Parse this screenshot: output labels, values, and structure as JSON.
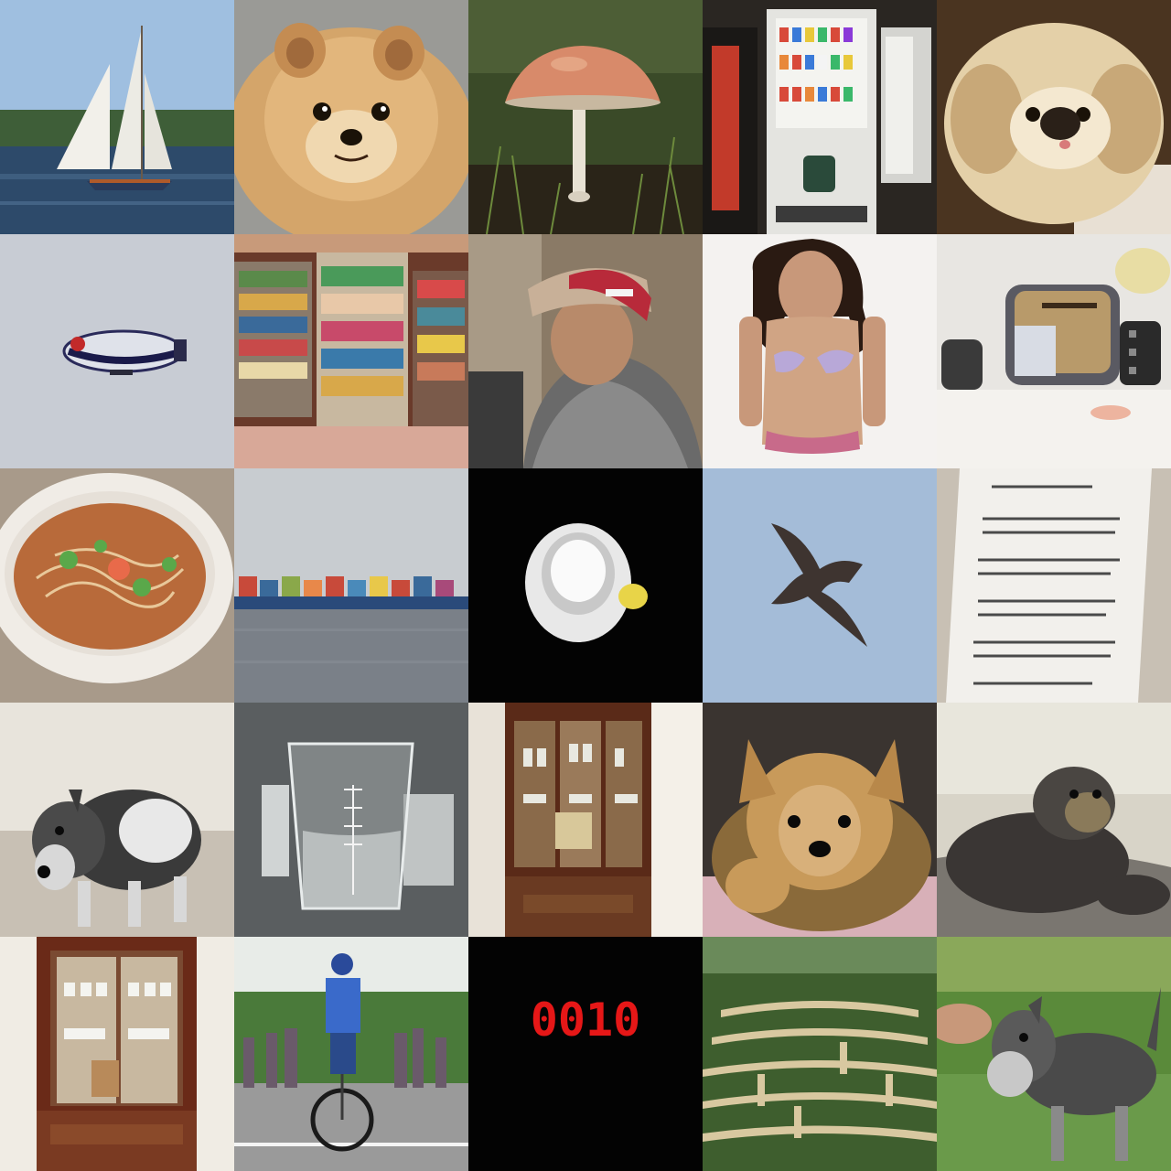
{
  "grid": {
    "rows": 5,
    "columns": 5,
    "tiles": [
      {
        "subject": "sailboat"
      },
      {
        "subject": "pomeranian"
      },
      {
        "subject": "mushroom"
      },
      {
        "subject": "vending-machine"
      },
      {
        "subject": "pekingese"
      },
      {
        "subject": "airship"
      },
      {
        "subject": "shop-shelves"
      },
      {
        "subject": "person-with-helmet"
      },
      {
        "subject": "woman-in-bikini"
      },
      {
        "subject": "toaster"
      },
      {
        "subject": "noodle-soup"
      },
      {
        "subject": "container-ship"
      },
      {
        "subject": "lamp-on-black"
      },
      {
        "subject": "bird-in-sky"
      },
      {
        "subject": "printed-document"
      },
      {
        "subject": "schnauzer"
      },
      {
        "subject": "glass-beaker"
      },
      {
        "subject": "china-cabinet"
      },
      {
        "subject": "yorkshire-terrier"
      },
      {
        "subject": "sea-lion"
      },
      {
        "subject": "china-cabinet"
      },
      {
        "subject": "unicycle-rider"
      },
      {
        "subject": "digital-clock"
      },
      {
        "subject": "hedge-maze"
      },
      {
        "subject": "schnauzer"
      }
    ]
  },
  "clock": {
    "display": "0010",
    "color": "#ff1a1a"
  }
}
